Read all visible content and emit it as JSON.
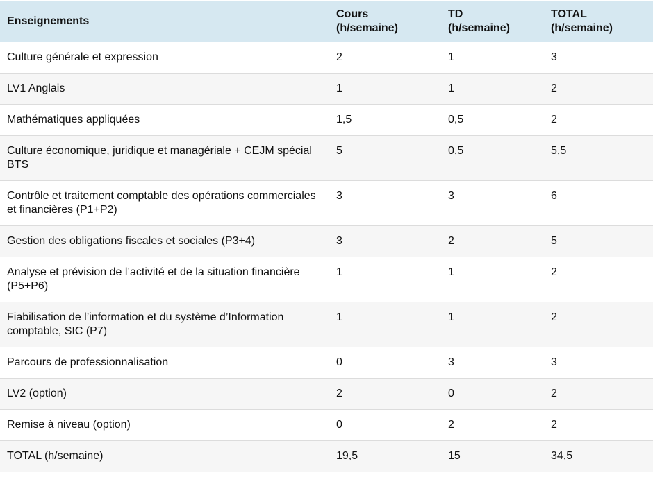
{
  "colors": {
    "header_bg": "#d6e8f1",
    "row_alt_bg": "#f6f6f6",
    "border": "#dcdcdc",
    "header_border": "#c8c8c8",
    "text": "#111111"
  },
  "table": {
    "columns": [
      {
        "title": "Enseignements",
        "sub": ""
      },
      {
        "title": "Cours",
        "sub": "(h/semaine)"
      },
      {
        "title": "TD",
        "sub": "(h/semaine)"
      },
      {
        "title": "TOTAL",
        "sub": "(h/semaine)"
      }
    ],
    "rows": [
      {
        "name": "Culture générale et expression",
        "cours": "2",
        "td": "1",
        "total": "3"
      },
      {
        "name": "LV1 Anglais",
        "cours": "1",
        "td": "1",
        "total": "2"
      },
      {
        "name": "Mathématiques appliquées",
        "cours": "1,5",
        "td": "0,5",
        "total": "2"
      },
      {
        "name": "Culture économique, juridique et managériale + CEJM spécial BTS",
        "cours": "5",
        "td": "0,5",
        "total": "5,5"
      },
      {
        "name": "Contrôle et traitement comptable des opérations commerciales et financières (P1+P2)",
        "cours": "3",
        "td": "3",
        "total": "6"
      },
      {
        "name": "Gestion des obligations fiscales et sociales (P3+4)",
        "cours": "3",
        "td": "2",
        "total": "5"
      },
      {
        "name": "Analyse et prévision de l’activité et de la situation financière (P5+P6)",
        "cours": "1",
        "td": "1",
        "total": "2"
      },
      {
        "name": "Fiabilisation de l’information et du système d’Information comptable, SIC (P7)",
        "cours": "1",
        "td": "1",
        "total": "2"
      },
      {
        "name": "Parcours de professionnalisation",
        "cours": "0",
        "td": "3",
        "total": "3"
      },
      {
        "name": "LV2 (option)",
        "cours": "2",
        "td": "0",
        "total": "2"
      },
      {
        "name": "Remise à niveau (option)",
        "cours": "0",
        "td": "2",
        "total": "2"
      },
      {
        "name": "TOTAL (h/semaine)",
        "cours": "19,5",
        "td": "15",
        "total": "34,5"
      }
    ]
  }
}
